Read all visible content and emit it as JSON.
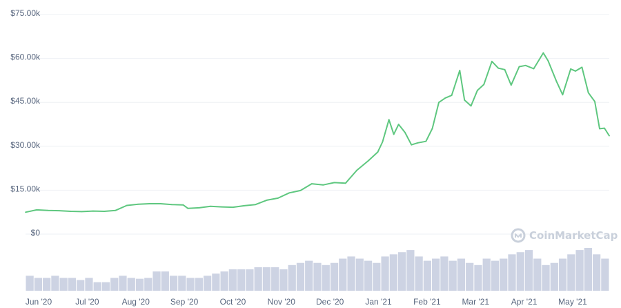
{
  "watermark": "CoinMarketCap",
  "colors": {
    "price_line": "#5ec77f",
    "volume_bars": "#cdd3e3",
    "grid": "#eef0f4",
    "tick_text": "#58667e",
    "watermark": "#c9d0db"
  },
  "chart_data": [
    {
      "type": "line",
      "y_ticks": [
        "$75.00k",
        "$60.00k",
        "$45.00k",
        "$30.00k",
        "$15.00k",
        "$0"
      ],
      "ylim": [
        0,
        75000
      ],
      "grid": "horizontal",
      "x_ticks": [
        "Jun '20",
        "Jul '20",
        "Aug '20",
        "Sep '20",
        "Oct '20",
        "Nov '20",
        "Dec '20",
        "Jan '21",
        "Feb '21",
        "Mar '21",
        "Apr '21",
        "May '21"
      ],
      "series": [
        {
          "x": [
            "2020-05-27",
            "2020-06-03",
            "2020-06-10",
            "2020-06-17",
            "2020-06-24",
            "2020-07-01",
            "2020-07-08",
            "2020-07-15",
            "2020-07-22",
            "2020-07-29",
            "2020-08-05",
            "2020-08-12",
            "2020-08-19",
            "2020-08-26",
            "2020-09-02",
            "2020-09-05",
            "2020-09-12",
            "2020-09-19",
            "2020-09-26",
            "2020-10-03",
            "2020-10-10",
            "2020-10-17",
            "2020-10-24",
            "2020-10-31",
            "2020-11-07",
            "2020-11-14",
            "2020-11-21",
            "2020-11-28",
            "2020-12-05",
            "2020-12-12",
            "2020-12-19",
            "2020-12-26",
            "2021-01-01",
            "2021-01-04",
            "2021-01-08",
            "2021-01-11",
            "2021-01-14",
            "2021-01-18",
            "2021-01-22",
            "2021-01-26",
            "2021-01-31",
            "2021-02-04",
            "2021-02-08",
            "2021-02-12",
            "2021-02-16",
            "2021-02-21",
            "2021-02-24",
            "2021-02-28",
            "2021-03-04",
            "2021-03-08",
            "2021-03-13",
            "2021-03-17",
            "2021-03-21",
            "2021-03-25",
            "2021-03-30",
            "2021-04-03",
            "2021-04-08",
            "2021-04-14",
            "2021-04-17",
            "2021-04-22",
            "2021-04-26",
            "2021-05-01",
            "2021-05-04",
            "2021-05-08",
            "2021-05-12",
            "2021-05-16",
            "2021-05-19",
            "2021-05-22",
            "2021-05-25"
          ],
          "y": [
            8900,
            9700,
            9500,
            9400,
            9200,
            9100,
            9300,
            9200,
            9500,
            11200,
            11600,
            11800,
            11800,
            11500,
            11400,
            10200,
            10400,
            10900,
            10700,
            10600,
            11100,
            11500,
            13000,
            13700,
            15500,
            16300,
            18600,
            18200,
            19000,
            18800,
            23200,
            26400,
            29400,
            32900,
            40500,
            35500,
            38900,
            36100,
            31900,
            32600,
            33100,
            37500,
            46400,
            47900,
            48800,
            57300,
            47200,
            45200,
            50500,
            52500,
            60400,
            58100,
            57600,
            52300,
            58600,
            59000,
            57900,
            63300,
            60600,
            53800,
            49000,
            57800,
            57100,
            58400,
            49700,
            46700,
            37400,
            37600,
            35000
          ]
        }
      ]
    },
    {
      "type": "bar",
      "series": [
        {
          "values": [
            0.35,
            0.3,
            0.3,
            0.35,
            0.3,
            0.3,
            0.25,
            0.3,
            0.2,
            0.2,
            0.3,
            0.35,
            0.3,
            0.28,
            0.3,
            0.45,
            0.45,
            0.35,
            0.35,
            0.3,
            0.3,
            0.35,
            0.4,
            0.45,
            0.5,
            0.5,
            0.5,
            0.55,
            0.55,
            0.55,
            0.5,
            0.6,
            0.65,
            0.7,
            0.65,
            0.6,
            0.65,
            0.75,
            0.8,
            0.75,
            0.7,
            0.65,
            0.8,
            0.85,
            0.9,
            0.95,
            0.8,
            0.7,
            0.75,
            0.8,
            0.7,
            0.75,
            0.65,
            0.6,
            0.75,
            0.7,
            0.75,
            0.85,
            0.9,
            0.95,
            0.75,
            0.6,
            0.65,
            0.75,
            0.85,
            0.95,
            1.0,
            0.85,
            0.75
          ]
        }
      ]
    }
  ]
}
